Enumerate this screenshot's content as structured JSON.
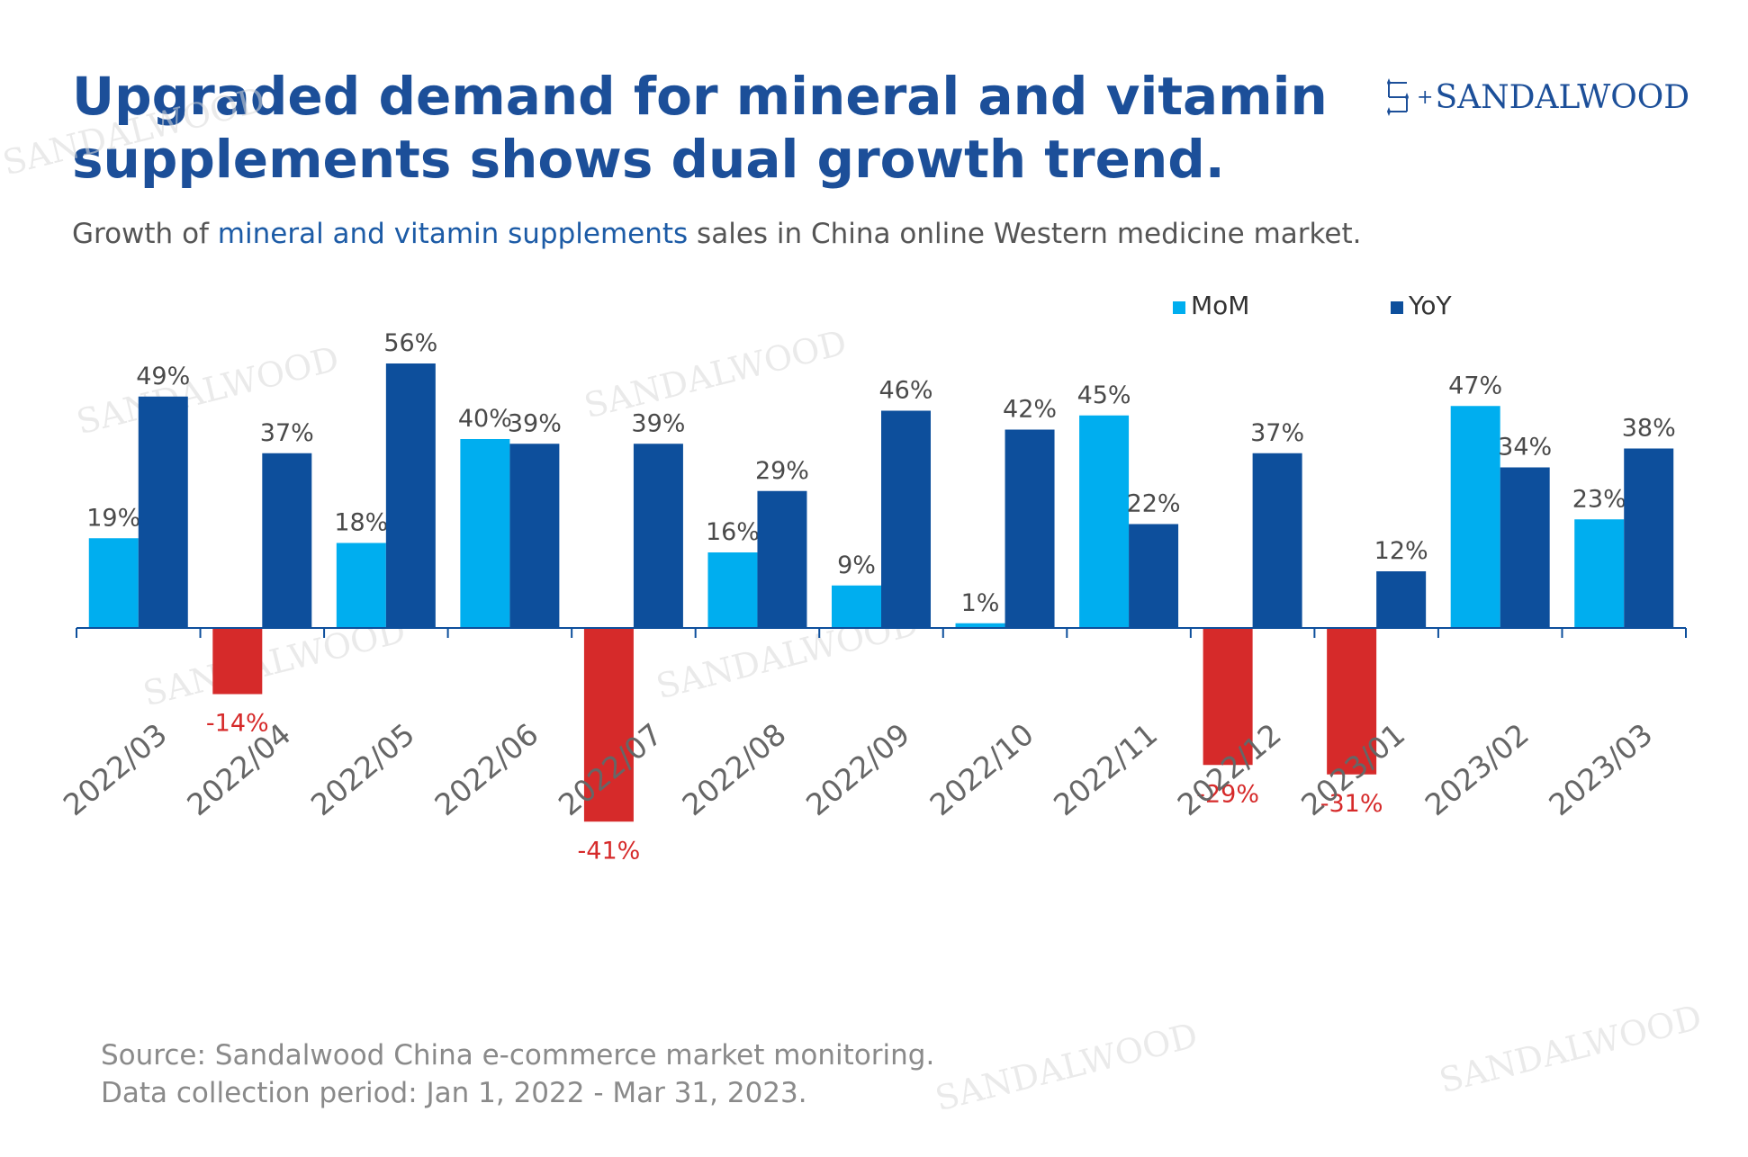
{
  "header": {
    "title": "Upgraded demand for mineral and vitamin supplements shows dual growth trend.",
    "subtitle_pre": "Growth of ",
    "subtitle_highlight": "mineral and vitamin supplements",
    "subtitle_post": " sales in China online Western medicine market."
  },
  "brand": {
    "name": "SANDALWOOD",
    "watermark": "SANDALWOOD"
  },
  "footer": {
    "source": "Source: Sandalwood China e-commerce market monitoring.",
    "period": "Data collection period: Jan 1, 2022 - Mar 31, 2023."
  },
  "colors": {
    "mom": "#00aeef",
    "yoy": "#0d4f9c",
    "negative": "#d62a2a",
    "title": "#1c4f99",
    "label": "#4a4a4a"
  },
  "chart_data": {
    "type": "bar",
    "categories": [
      "2022/03",
      "2022/04",
      "2022/05",
      "2022/06",
      "2022/07",
      "2022/08",
      "2022/09",
      "2022/10",
      "2022/11",
      "2022/12",
      "2023/01",
      "2023/02",
      "2023/03"
    ],
    "series": [
      {
        "name": "MoM",
        "values": [
          19,
          -14,
          18,
          40,
          -41,
          16,
          9,
          1,
          45,
          -29,
          -31,
          47,
          23
        ]
      },
      {
        "name": "YoY",
        "values": [
          49,
          37,
          56,
          39,
          39,
          29,
          46,
          42,
          22,
          37,
          12,
          34,
          38
        ]
      }
    ],
    "value_suffix": "%",
    "negative_color": "#d62a2a",
    "legend_position": "top-right",
    "grid": false,
    "ylim": [
      -50,
      60
    ]
  }
}
